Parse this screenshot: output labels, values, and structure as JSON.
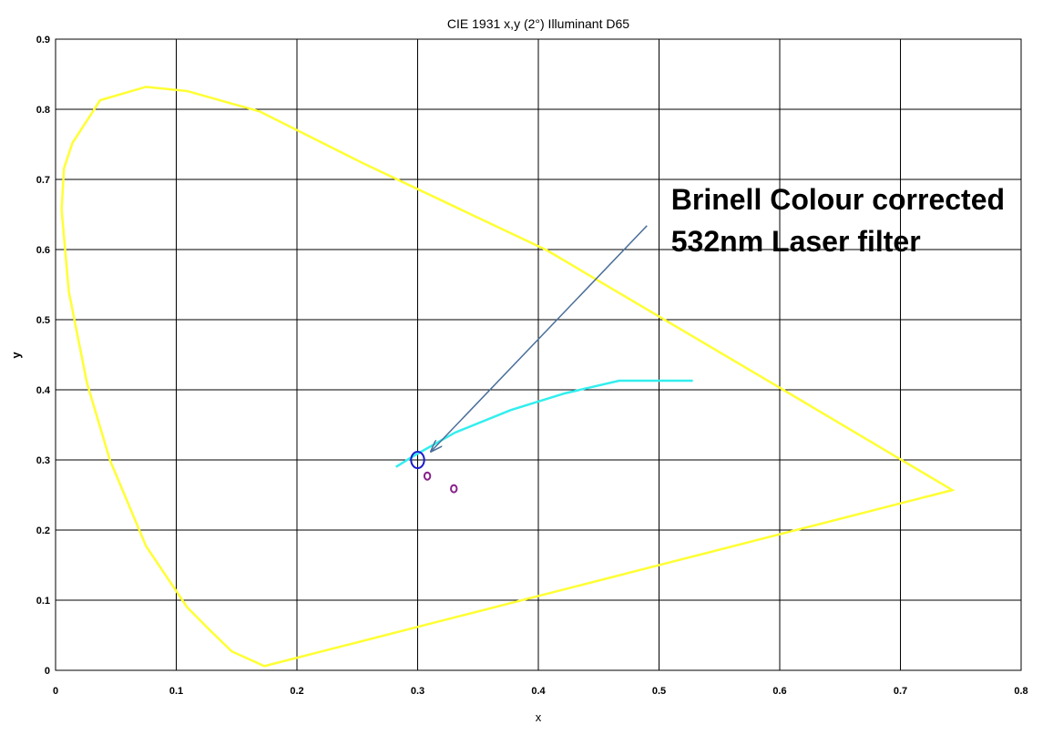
{
  "chart_data": {
    "type": "line",
    "title": "CIE 1931 x,y (2°) Illuminant D65",
    "xlabel": "x",
    "ylabel": "y",
    "xlim": [
      0,
      0.8
    ],
    "ylim": [
      0,
      0.9
    ],
    "xticks": [
      0,
      0.1,
      0.2,
      0.3,
      0.4,
      0.5,
      0.6,
      0.7,
      0.8
    ],
    "yticks": [
      0,
      0.1,
      0.2,
      0.3,
      0.4,
      0.5,
      0.6,
      0.7,
      0.8,
      0.9
    ],
    "grid": true,
    "series": [
      {
        "type": "line",
        "closed": true,
        "color": "#ffff33",
        "x": [
          0.173,
          0.146,
          0.128,
          0.109,
          0.075,
          0.045,
          0.026,
          0.011,
          0.005,
          0.007,
          0.014,
          0.037,
          0.075,
          0.109,
          0.169,
          0.256,
          0.407,
          0.599,
          0.743
        ],
        "values": [
          0.006,
          0.027,
          0.057,
          0.09,
          0.177,
          0.3,
          0.41,
          0.54,
          0.657,
          0.716,
          0.752,
          0.813,
          0.832,
          0.826,
          0.797,
          0.722,
          0.599,
          0.404,
          0.257
        ]
      },
      {
        "type": "line",
        "closed": false,
        "color": "#33eeee",
        "x": [
          0.282,
          0.297,
          0.331,
          0.377,
          0.422,
          0.467,
          0.528
        ],
        "values": [
          0.29,
          0.306,
          0.339,
          0.371,
          0.395,
          0.413,
          0.413
        ]
      },
      {
        "type": "scatter",
        "color": "#1a1acc",
        "marker_size": 9,
        "x": [
          0.3
        ],
        "values": [
          0.3
        ]
      },
      {
        "type": "scatter",
        "color": "#882288",
        "marker_size": 4,
        "x": [
          0.308,
          0.33
        ],
        "values": [
          0.277,
          0.259
        ]
      }
    ],
    "annotation": {
      "text": [
        "Brinell Colour corrected",
        "532nm Laser filter"
      ],
      "xy": [
        0.311,
        0.312
      ],
      "xytext": [
        0.51,
        0.657
      ],
      "arrow_from": [
        0.49,
        0.634
      ],
      "color": "#4a6f99"
    }
  }
}
